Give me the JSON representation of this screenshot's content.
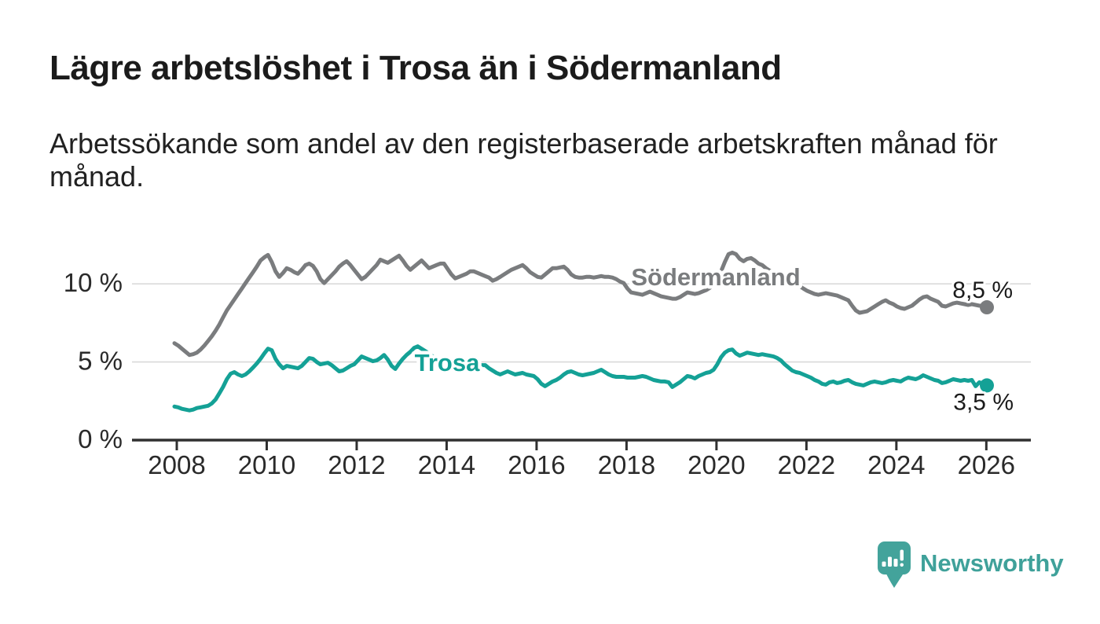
{
  "header": {
    "title": "Lägre arbetslöshet i Trosa än i Södermanland",
    "subtitle_line1": "Arbetssökande som andel av den registerbaserade arbetskraften månad för",
    "subtitle_line2": "månad."
  },
  "chart_data": {
    "type": "line",
    "title": "Lägre arbetslöshet i Trosa än i Södermanland",
    "xlabel": "",
    "ylabel": "Arbetssökande som andel av den registerbaserade arbetskraften",
    "frequency": "monthly",
    "x_start": "2008-01",
    "x_end": "2026-02",
    "grid": "horizontal",
    "legend": "inline-labels",
    "ylim": [
      0,
      13
    ],
    "x_axis": {
      "ticks": [
        2008,
        2010,
        2012,
        2014,
        2016,
        2018,
        2020,
        2022,
        2024,
        2026
      ]
    },
    "y_axis": {
      "ticks": [
        {
          "value": 0,
          "label": "0 %"
        },
        {
          "value": 5,
          "label": "5 %"
        },
        {
          "value": 10,
          "label": "10 %"
        }
      ]
    },
    "series": [
      {
        "name": "Södermanland",
        "color": "#7a7c7e",
        "end_label": "8,5 %",
        "end_value": 8.5,
        "values": [
          6.2,
          6.05,
          5.85,
          5.65,
          5.45,
          5.5,
          5.6,
          5.8,
          6.05,
          6.35,
          6.65,
          7.0,
          7.4,
          7.85,
          8.3,
          8.65,
          9.0,
          9.35,
          9.7,
          10.05,
          10.4,
          10.75,
          11.1,
          11.5,
          11.7,
          11.85,
          11.4,
          10.8,
          10.45,
          10.7,
          11.0,
          10.9,
          10.75,
          10.65,
          10.9,
          11.2,
          11.3,
          11.15,
          10.8,
          10.3,
          10.05,
          10.3,
          10.55,
          10.8,
          11.1,
          11.3,
          11.45,
          11.2,
          10.9,
          10.6,
          10.3,
          10.45,
          10.7,
          10.95,
          11.2,
          11.55,
          11.45,
          11.35,
          11.5,
          11.65,
          11.8,
          11.5,
          11.15,
          10.9,
          11.1,
          11.3,
          11.5,
          11.25,
          11.0,
          11.1,
          11.2,
          11.3,
          11.3,
          10.95,
          10.6,
          10.35,
          10.45,
          10.55,
          10.65,
          10.8,
          10.8,
          10.7,
          10.6,
          10.5,
          10.4,
          10.2,
          10.3,
          10.45,
          10.6,
          10.75,
          10.9,
          11.0,
          11.1,
          11.2,
          11.0,
          10.75,
          10.6,
          10.45,
          10.4,
          10.6,
          10.8,
          11.0,
          11.0,
          11.05,
          11.1,
          10.9,
          10.6,
          10.45,
          10.4,
          10.4,
          10.45,
          10.45,
          10.4,
          10.45,
          10.5,
          10.45,
          10.45,
          10.4,
          10.3,
          10.15,
          10.05,
          9.7,
          9.45,
          9.4,
          9.35,
          9.3,
          9.4,
          9.5,
          9.4,
          9.3,
          9.2,
          9.15,
          9.1,
          9.05,
          9.05,
          9.15,
          9.3,
          9.45,
          9.4,
          9.35,
          9.4,
          9.5,
          9.6,
          9.75,
          9.9,
          10.2,
          10.8,
          11.4,
          11.9,
          12.0,
          11.9,
          11.6,
          11.45,
          11.6,
          11.65,
          11.5,
          11.3,
          11.2,
          11.0,
          10.85,
          10.7,
          10.6,
          10.5,
          10.35,
          10.2,
          10.05,
          9.95,
          9.85,
          9.7,
          9.55,
          9.45,
          9.35,
          9.3,
          9.35,
          9.4,
          9.35,
          9.3,
          9.25,
          9.15,
          9.05,
          8.95,
          8.6,
          8.3,
          8.15,
          8.2,
          8.25,
          8.4,
          8.55,
          8.7,
          8.85,
          8.95,
          8.8,
          8.7,
          8.55,
          8.45,
          8.4,
          8.5,
          8.6,
          8.8,
          9.0,
          9.15,
          9.2,
          9.05,
          8.95,
          8.85,
          8.6,
          8.55,
          8.65,
          8.75,
          8.8,
          8.75,
          8.7,
          8.65,
          8.7,
          8.65,
          8.6,
          8.6,
          8.5
        ]
      },
      {
        "name": "Trosa",
        "color": "#14a196",
        "end_label": "3,5 %",
        "end_value": 3.5,
        "values": [
          2.15,
          2.1,
          2.0,
          1.95,
          1.9,
          1.95,
          2.05,
          2.1,
          2.15,
          2.2,
          2.35,
          2.6,
          3.0,
          3.4,
          3.9,
          4.25,
          4.35,
          4.2,
          4.1,
          4.2,
          4.4,
          4.65,
          4.9,
          5.2,
          5.55,
          5.85,
          5.75,
          5.2,
          4.85,
          4.6,
          4.75,
          4.7,
          4.65,
          4.6,
          4.75,
          5.0,
          5.25,
          5.2,
          5.0,
          4.85,
          4.9,
          4.95,
          4.8,
          4.6,
          4.4,
          4.45,
          4.6,
          4.75,
          4.85,
          5.1,
          5.35,
          5.25,
          5.15,
          5.05,
          5.1,
          5.25,
          5.45,
          5.15,
          4.75,
          4.55,
          4.9,
          5.2,
          5.45,
          5.65,
          5.9,
          6.0,
          5.85,
          5.7,
          5.55,
          5.35,
          5.2,
          5.05,
          4.9,
          4.75,
          4.6,
          4.45,
          4.55,
          4.7,
          4.85,
          5.0,
          4.9,
          4.85,
          4.8,
          4.8,
          4.6,
          4.45,
          4.3,
          4.2,
          4.3,
          4.4,
          4.3,
          4.2,
          4.25,
          4.3,
          4.2,
          4.15,
          4.1,
          3.9,
          3.6,
          3.45,
          3.6,
          3.75,
          3.85,
          4.0,
          4.2,
          4.35,
          4.4,
          4.3,
          4.2,
          4.15,
          4.2,
          4.25,
          4.3,
          4.4,
          4.5,
          4.35,
          4.2,
          4.1,
          4.05,
          4.05,
          4.05,
          4.0,
          4.0,
          4.0,
          4.05,
          4.1,
          4.05,
          3.95,
          3.85,
          3.8,
          3.75,
          3.75,
          3.7,
          3.4,
          3.55,
          3.7,
          3.9,
          4.1,
          4.05,
          3.95,
          4.1,
          4.2,
          4.3,
          4.35,
          4.5,
          4.85,
          5.3,
          5.6,
          5.75,
          5.8,
          5.55,
          5.4,
          5.5,
          5.6,
          5.55,
          5.5,
          5.45,
          5.5,
          5.45,
          5.4,
          5.35,
          5.25,
          5.1,
          4.85,
          4.65,
          4.45,
          4.35,
          4.3,
          4.2,
          4.1,
          4.0,
          3.85,
          3.75,
          3.6,
          3.55,
          3.7,
          3.75,
          3.65,
          3.7,
          3.8,
          3.85,
          3.7,
          3.6,
          3.55,
          3.5,
          3.6,
          3.7,
          3.75,
          3.7,
          3.65,
          3.7,
          3.8,
          3.85,
          3.8,
          3.75,
          3.9,
          4.0,
          3.95,
          3.9,
          4.0,
          4.15,
          4.05,
          3.95,
          3.85,
          3.8,
          3.65,
          3.7,
          3.8,
          3.9,
          3.85,
          3.8,
          3.85,
          3.8,
          3.85,
          3.45,
          3.7,
          3.6,
          3.5
        ]
      }
    ],
    "colors": {
      "grid": "#d9d9d9",
      "axis": "#303030",
      "tick_text": "#2a2a2a",
      "annotation_text": "#1b1b1b"
    }
  },
  "branding": {
    "logo_text": "Newsworthy",
    "logo_icon": "bar-chart-speech-bubble-icon",
    "brand_color": "#3fa19a"
  }
}
